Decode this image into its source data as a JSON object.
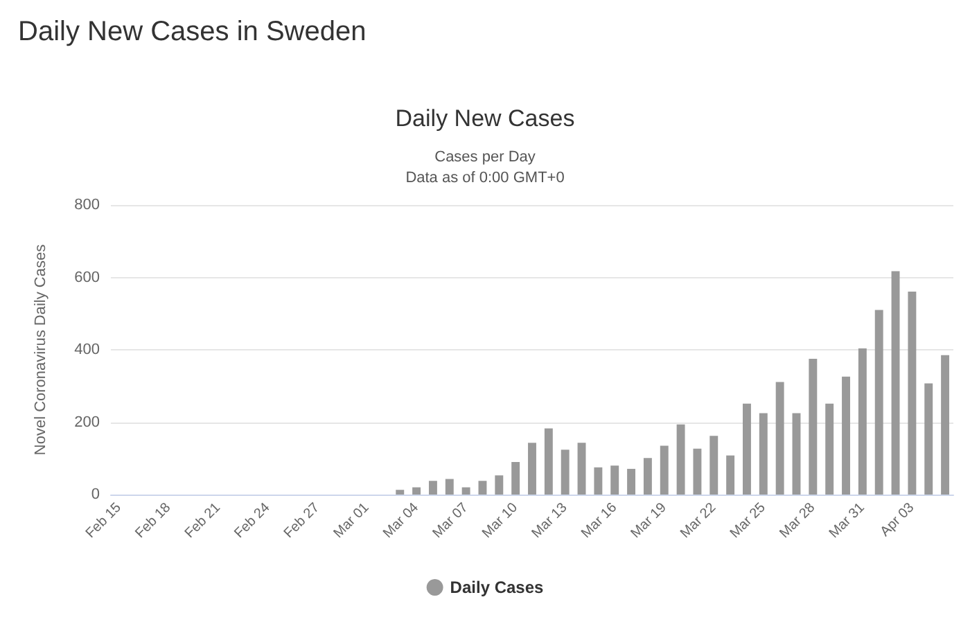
{
  "chart_data": {
    "type": "bar",
    "title": "Daily New Cases in Sweden",
    "subtitle": "Daily New Cases",
    "annotations": [
      "Cases per Day",
      "Data as of 0:00 GMT+0"
    ],
    "ylabel": "Novel Coronavirus Daily Cases",
    "categories": [
      "Feb 15",
      null,
      null,
      "Feb 18",
      null,
      null,
      "Feb 21",
      null,
      null,
      "Feb 24",
      null,
      null,
      "Feb 27",
      null,
      null,
      "Mar 01",
      null,
      null,
      "Mar 04",
      null,
      null,
      "Mar 07",
      null,
      null,
      "Mar 10",
      null,
      null,
      "Mar 13",
      null,
      null,
      "Mar 16",
      null,
      null,
      "Mar 19",
      null,
      null,
      "Mar 22",
      null,
      null,
      "Mar 25",
      null,
      null,
      "Mar 28",
      null,
      null,
      "Mar 31",
      null,
      null,
      "Apr 03",
      null,
      null
    ],
    "series": [
      {
        "name": "Daily Cases",
        "color": "#999999",
        "values": [
          0,
          0,
          0,
          0,
          0,
          0,
          0,
          0,
          0,
          0,
          0,
          0,
          0,
          0,
          0,
          0,
          0,
          13,
          20,
          38,
          43,
          20,
          38,
          53,
          90,
          143,
          183,
          124,
          143,
          75,
          80,
          71,
          101,
          135,
          194,
          127,
          162,
          108,
          251,
          225,
          311,
          225,
          375,
          251,
          326,
          404,
          510,
          617,
          561,
          307,
          385
        ]
      }
    ],
    "ylim": [
      0,
      800
    ],
    "yticks": [
      0,
      200,
      400,
      600,
      800
    ],
    "grid": "y",
    "legend": "bottom"
  }
}
